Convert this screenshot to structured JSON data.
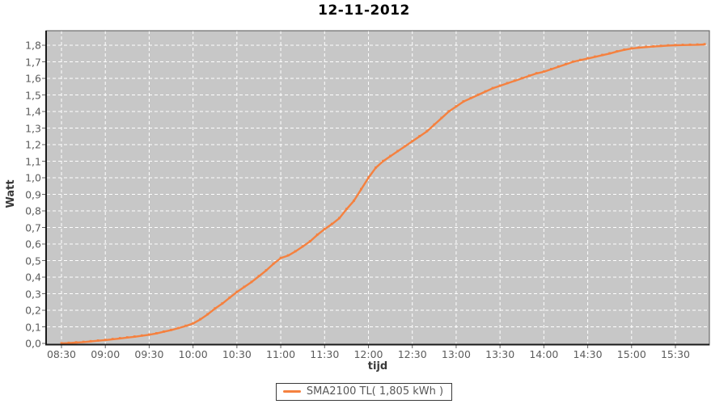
{
  "colors": {
    "line": "#f5813f",
    "plot_bg": "#c7c7c7",
    "grid": "#ffffff",
    "axis_line": "#1a1a1a",
    "tick_mark": "#666666",
    "tick_text": "#5c5c5c",
    "axis_title_text": "#3a3a3a"
  },
  "legend": {
    "label": "SMA2100 TL( 1,805 kWh )"
  },
  "chart_data": {
    "type": "line",
    "title": "12-11-2012",
    "xlabel": "tijd",
    "ylabel": "Watt",
    "ylim": [
      0,
      1.8
    ],
    "y_tick_step": 0.1,
    "decimal_separator": ",",
    "x_range": [
      "08:19",
      "15:53"
    ],
    "grid": "white dashed gridlines on gray plot background",
    "legend_position": "bottom center",
    "y_tick_labels": [
      "0,0",
      "0,1",
      "0,2",
      "0,3",
      "0,4",
      "0,5",
      "0,6",
      "0,7",
      "0,8",
      "0,9",
      "1,0",
      "1,1",
      "1,2",
      "1,3",
      "1,4",
      "1,5",
      "1,6",
      "1,7",
      "1,8"
    ],
    "x_tick_labels": [
      "08:30",
      "09:00",
      "09:30",
      "10:00",
      "10:30",
      "11:00",
      "11:30",
      "12:00",
      "12:30",
      "13:00",
      "13:30",
      "14:00",
      "14:30",
      "15:00",
      "15:30"
    ],
    "series": [
      {
        "name": "SMA2100 TL( 1,805 kWh )",
        "color": "#f5813f",
        "total_kwh_label": "1,805 kWh",
        "points": [
          [
            "08:30",
            0.0
          ],
          [
            "08:35",
            0.002
          ],
          [
            "08:40",
            0.005
          ],
          [
            "08:45",
            0.008
          ],
          [
            "08:50",
            0.012
          ],
          [
            "08:55",
            0.016
          ],
          [
            "09:00",
            0.02
          ],
          [
            "09:05",
            0.025
          ],
          [
            "09:10",
            0.03
          ],
          [
            "09:15",
            0.035
          ],
          [
            "09:20",
            0.04
          ],
          [
            "09:25",
            0.046
          ],
          [
            "09:30",
            0.052
          ],
          [
            "09:35",
            0.06
          ],
          [
            "09:40",
            0.07
          ],
          [
            "09:45",
            0.08
          ],
          [
            "09:50",
            0.092
          ],
          [
            "09:55",
            0.105
          ],
          [
            "10:00",
            0.12
          ],
          [
            "10:05",
            0.145
          ],
          [
            "10:10",
            0.175
          ],
          [
            "10:15",
            0.21
          ],
          [
            "10:20",
            0.24
          ],
          [
            "10:25",
            0.275
          ],
          [
            "10:30",
            0.31
          ],
          [
            "10:35",
            0.34
          ],
          [
            "10:40",
            0.37
          ],
          [
            "10:45",
            0.405
          ],
          [
            "10:50",
            0.44
          ],
          [
            "10:55",
            0.48
          ],
          [
            "11:00",
            0.515
          ],
          [
            "11:05",
            0.53
          ],
          [
            "11:10",
            0.555
          ],
          [
            "11:15",
            0.585
          ],
          [
            "11:20",
            0.615
          ],
          [
            "11:25",
            0.655
          ],
          [
            "11:30",
            0.69
          ],
          [
            "11:35",
            0.72
          ],
          [
            "11:40",
            0.755
          ],
          [
            "11:45",
            0.81
          ],
          [
            "11:50",
            0.86
          ],
          [
            "11:55",
            0.93
          ],
          [
            "12:00",
            1.0
          ],
          [
            "12:05",
            1.06
          ],
          [
            "12:10",
            1.1
          ],
          [
            "12:15",
            1.13
          ],
          [
            "12:20",
            1.16
          ],
          [
            "12:25",
            1.19
          ],
          [
            "12:30",
            1.22
          ],
          [
            "12:35",
            1.25
          ],
          [
            "12:40",
            1.28
          ],
          [
            "12:45",
            1.32
          ],
          [
            "12:50",
            1.36
          ],
          [
            "12:55",
            1.4
          ],
          [
            "13:00",
            1.43
          ],
          [
            "13:05",
            1.46
          ],
          [
            "13:10",
            1.48
          ],
          [
            "13:15",
            1.5
          ],
          [
            "13:20",
            1.52
          ],
          [
            "13:25",
            1.54
          ],
          [
            "13:30",
            1.555
          ],
          [
            "13:35",
            1.57
          ],
          [
            "13:40",
            1.585
          ],
          [
            "13:45",
            1.6
          ],
          [
            "13:50",
            1.615
          ],
          [
            "13:55",
            1.63
          ],
          [
            "14:00",
            1.64
          ],
          [
            "14:05",
            1.655
          ],
          [
            "14:10",
            1.67
          ],
          [
            "14:15",
            1.685
          ],
          [
            "14:20",
            1.7
          ],
          [
            "14:25",
            1.71
          ],
          [
            "14:30",
            1.72
          ],
          [
            "14:35",
            1.73
          ],
          [
            "14:40",
            1.74
          ],
          [
            "14:45",
            1.75
          ],
          [
            "14:50",
            1.762
          ],
          [
            "14:55",
            1.772
          ],
          [
            "15:00",
            1.78
          ],
          [
            "15:05",
            1.785
          ],
          [
            "15:10",
            1.789
          ],
          [
            "15:15",
            1.792
          ],
          [
            "15:20",
            1.795
          ],
          [
            "15:25",
            1.798
          ],
          [
            "15:30",
            1.8
          ],
          [
            "15:35",
            1.801
          ],
          [
            "15:40",
            1.802
          ],
          [
            "15:45",
            1.803
          ],
          [
            "15:50",
            1.805
          ]
        ]
      }
    ]
  }
}
